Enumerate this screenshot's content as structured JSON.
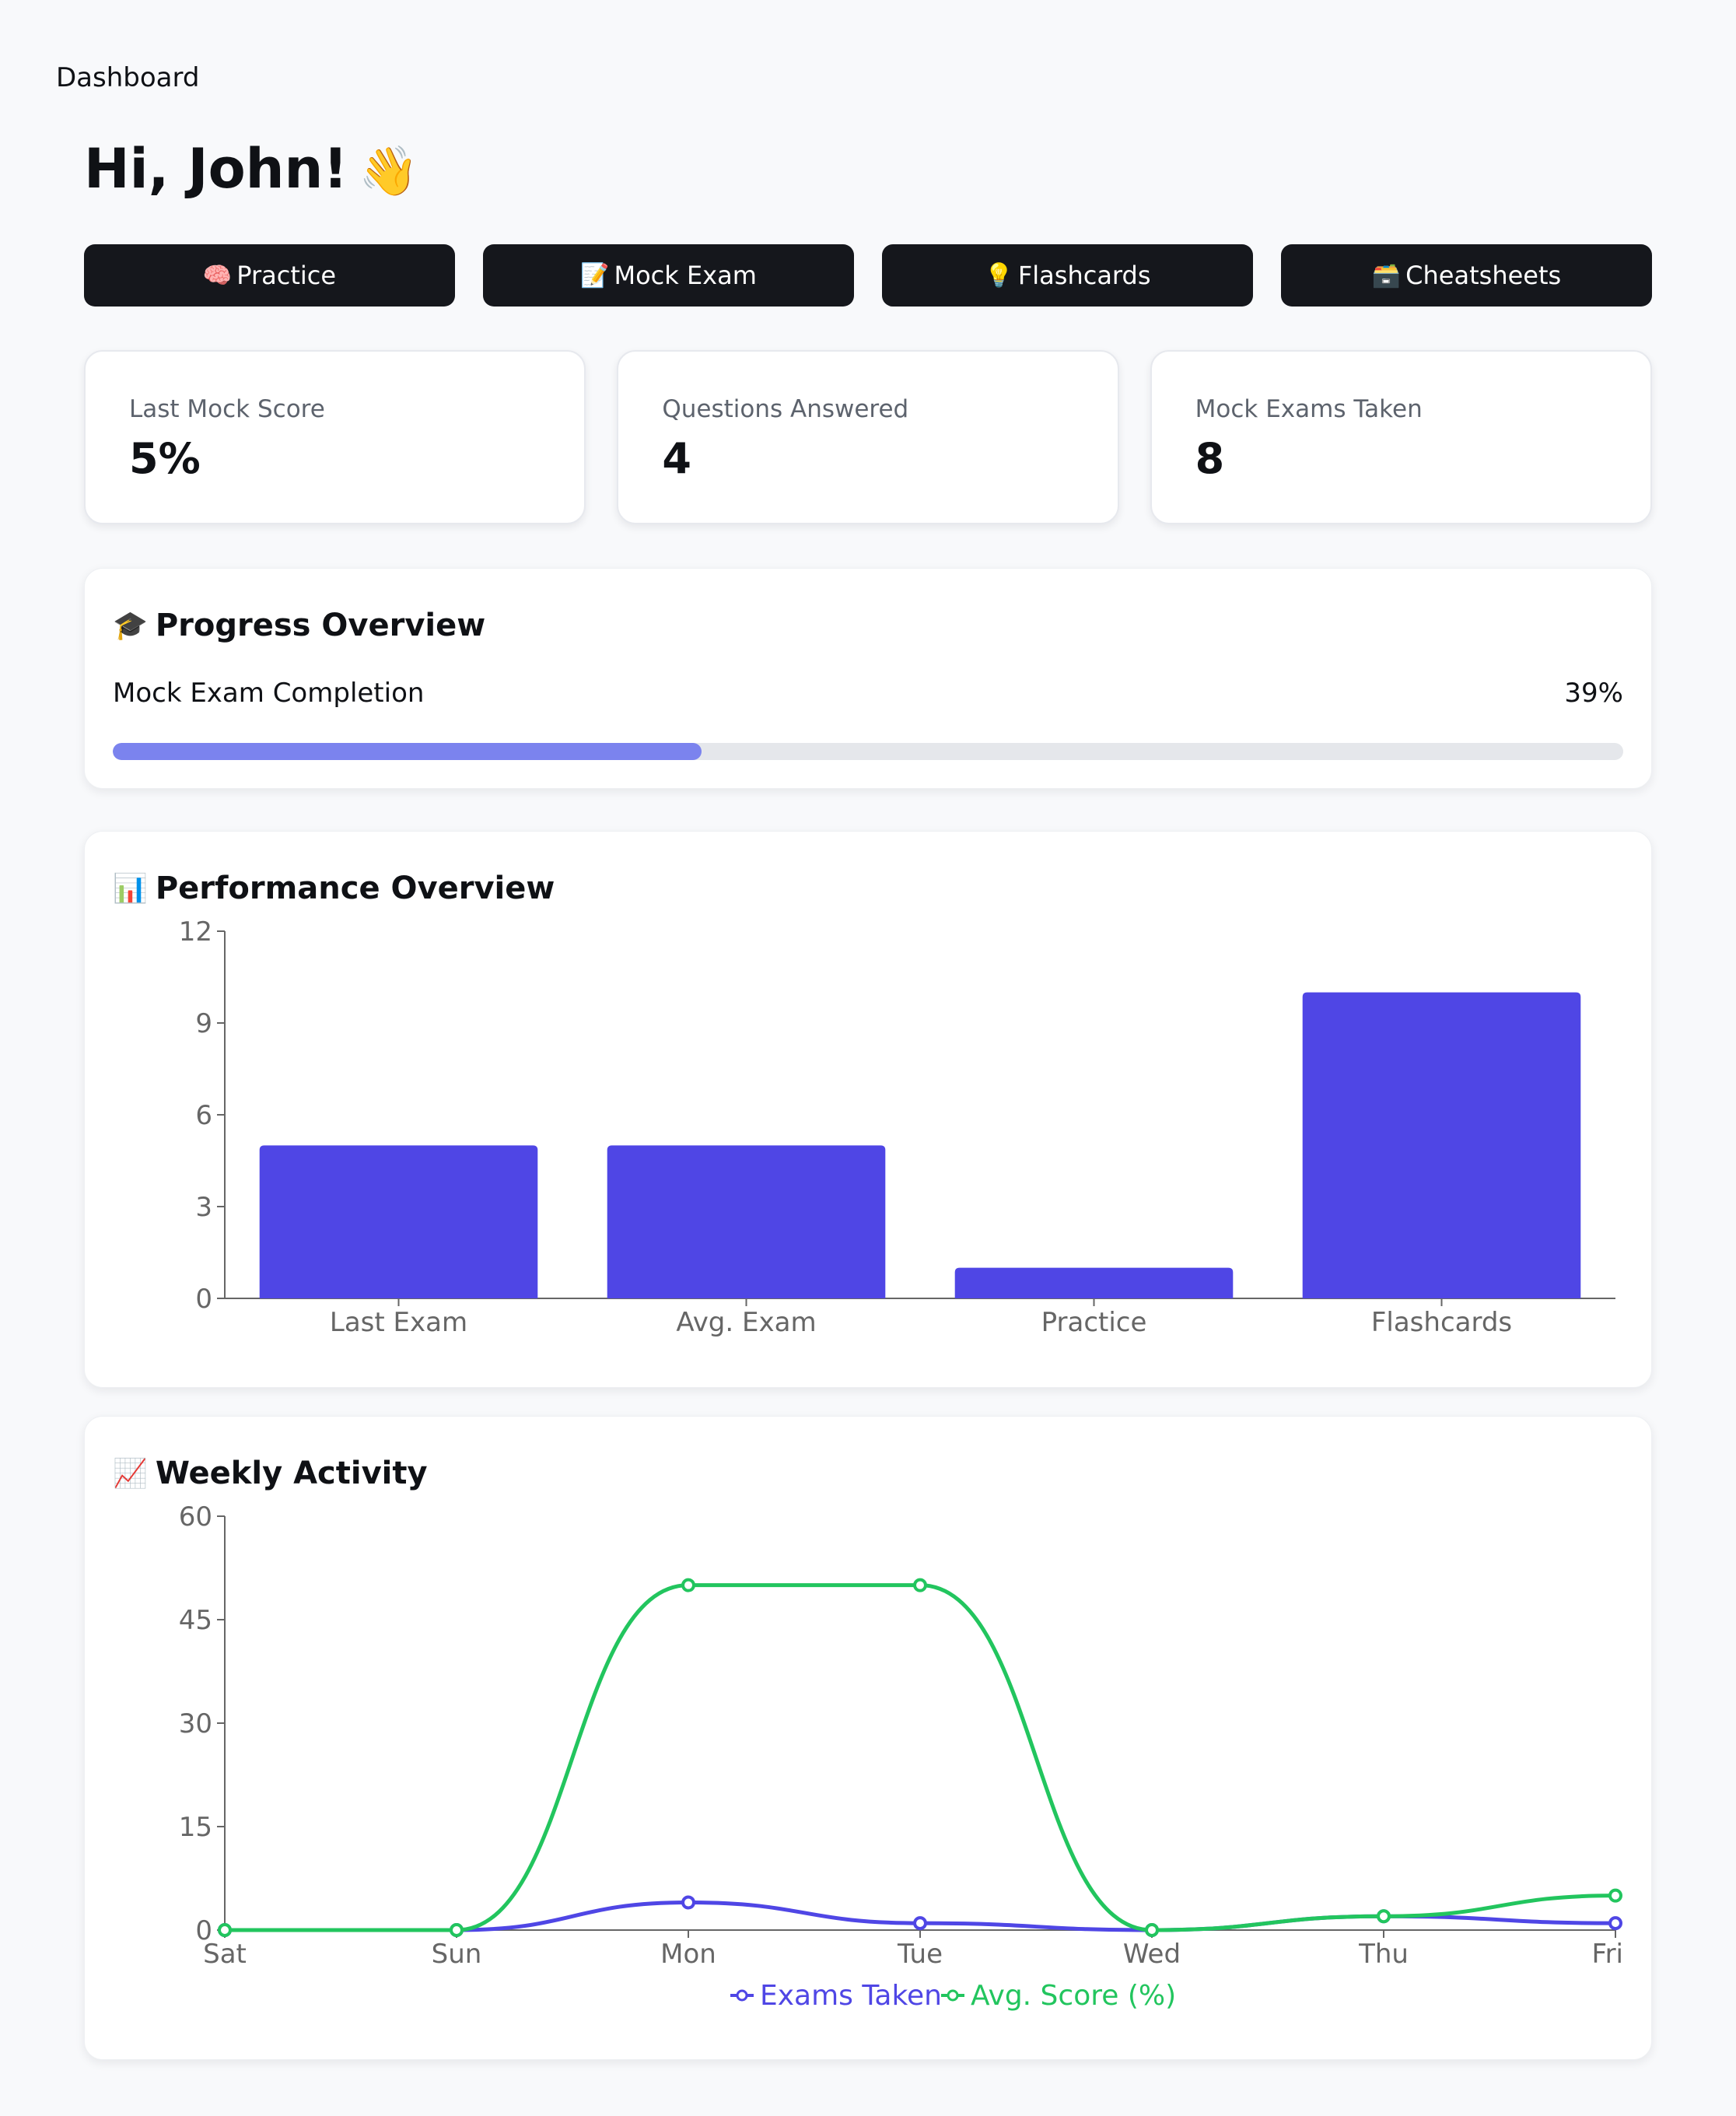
{
  "breadcrumb": "Dashboard",
  "greeting": "Hi, John!",
  "greeting_emoji": "👋",
  "actions": [
    {
      "icon": "🧠",
      "label": "Practice"
    },
    {
      "icon": "📝",
      "label": "Mock Exam"
    },
    {
      "icon": "💡",
      "label": "Flashcards"
    },
    {
      "icon": "🗃️",
      "label": "Cheatsheets"
    }
  ],
  "stats": [
    {
      "label": "Last Mock Score",
      "value": "5%"
    },
    {
      "label": "Questions Answered",
      "value": "4"
    },
    {
      "label": "Mock Exams Taken",
      "value": "8"
    }
  ],
  "progress": {
    "icon": "🎓",
    "title": "Progress Overview",
    "label": "Mock Exam Completion",
    "percent_text": "39%",
    "fraction": 0.39,
    "bar_color": "#7b83ee"
  },
  "performance": {
    "icon": "📊",
    "title": "Performance Overview"
  },
  "weekly": {
    "icon": "📈",
    "title": "Weekly Activity"
  },
  "chart_data": [
    {
      "type": "bar",
      "categories": [
        "Last Exam",
        "Avg. Exam",
        "Practice",
        "Flashcards"
      ],
      "values": [
        5,
        5,
        1,
        10
      ],
      "yticks": [
        0,
        3,
        6,
        9,
        12
      ],
      "ylim": [
        0,
        12
      ],
      "color": "#4f46e5",
      "grid": false,
      "legend": false
    },
    {
      "type": "line",
      "x": [
        "Sat",
        "Sun",
        "Mon",
        "Tue",
        "Wed",
        "Thu",
        "Fri"
      ],
      "series": [
        {
          "name": "Exams Taken",
          "values": [
            0,
            0,
            4,
            1,
            0,
            2,
            1
          ],
          "color": "#4f46e5"
        },
        {
          "name": "Avg. Score (%)",
          "values": [
            0,
            0,
            50,
            50,
            0,
            2,
            5
          ],
          "color": "#22c55e"
        }
      ],
      "yticks": [
        0,
        15,
        30,
        45,
        60
      ],
      "ylim": [
        0,
        60
      ],
      "grid": false,
      "legend": "bottom-center"
    }
  ]
}
